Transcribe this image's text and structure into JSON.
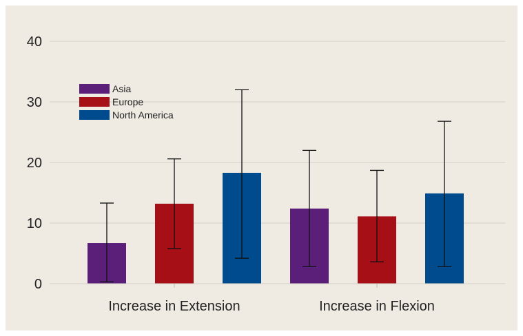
{
  "chart_data": {
    "type": "bar",
    "categories": [
      "Increase in Extension",
      "Increase in Flexion"
    ],
    "series": [
      {
        "name": "Asia",
        "color": "#5b1f7a",
        "values": [
          6.7,
          12.4
        ],
        "error_low": [
          0.3,
          2.8
        ],
        "error_high": [
          13.3,
          22.0
        ]
      },
      {
        "name": "Europe",
        "color": "#a50f15",
        "values": [
          13.2,
          11.1
        ],
        "error_low": [
          5.8,
          3.6
        ],
        "error_high": [
          20.6,
          18.7
        ]
      },
      {
        "name": "North America",
        "color": "#004b8d",
        "values": [
          18.3,
          14.9
        ],
        "error_low": [
          4.2,
          2.8
        ],
        "error_high": [
          32.0,
          26.8
        ]
      }
    ],
    "yticks": [
      0,
      10,
      20,
      30,
      40
    ],
    "ylim": [
      0,
      40
    ],
    "grid": true,
    "legend": "top-left",
    "error_bars": true
  }
}
